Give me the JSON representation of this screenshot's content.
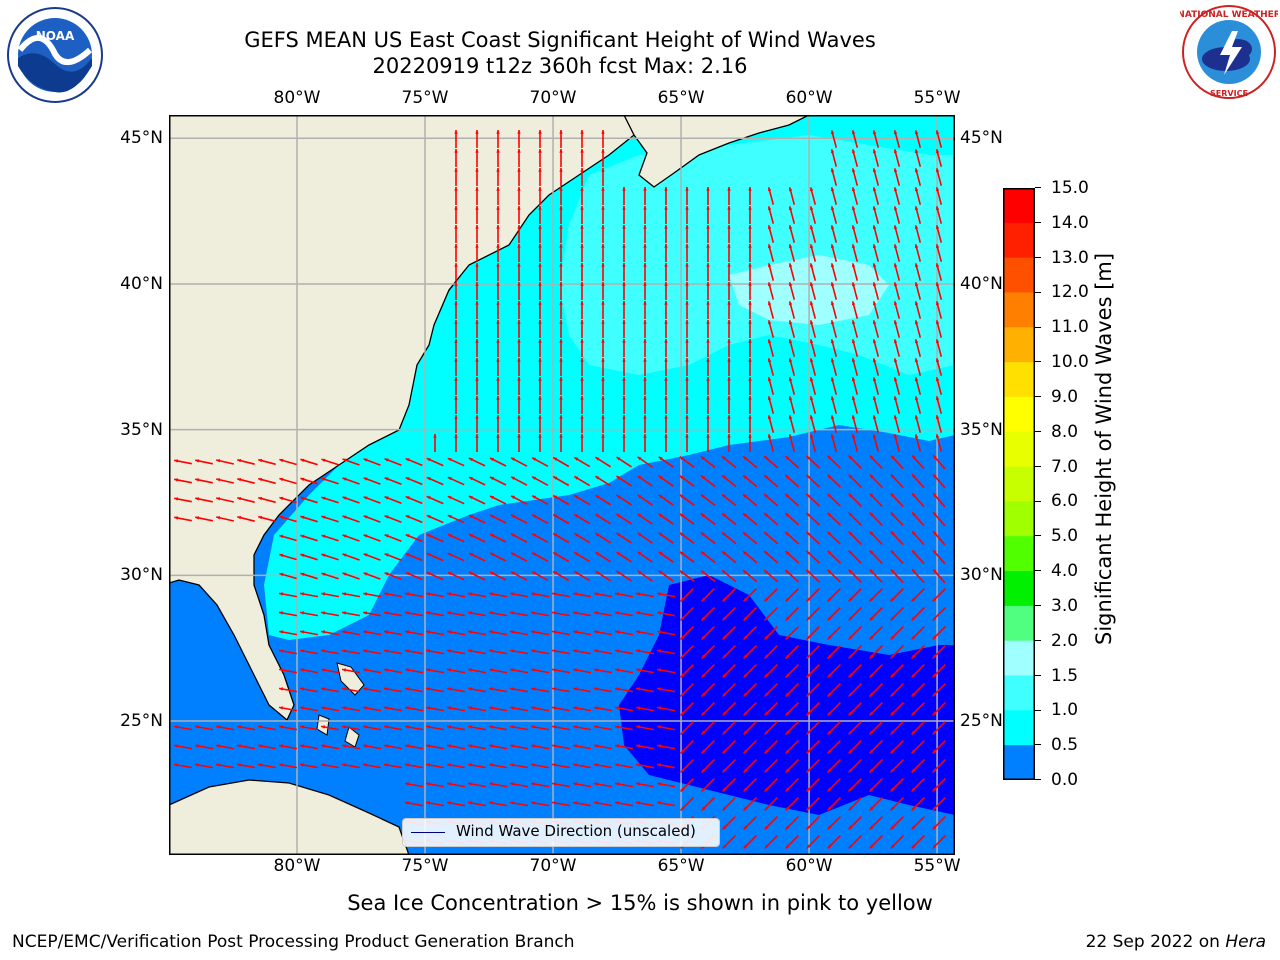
{
  "title": {
    "line1": "GEFS MEAN US East Coast Significant Height of Wind Waves",
    "line2": "20220919 t12z 360h fcst   Max: 2.16"
  },
  "map": {
    "lon_ticks_top": [
      "80°W",
      "75°W",
      "70°W",
      "65°W",
      "60°W",
      "55°W"
    ],
    "lon_ticks_bottom": [
      "80°W",
      "75°W",
      "70°W",
      "65°W",
      "60°W",
      "55°W"
    ],
    "lat_ticks_left": [
      "45°N",
      "40°N",
      "35°N",
      "30°N",
      "25°N"
    ],
    "lat_ticks_right": [
      "45°N",
      "40°N",
      "35°N",
      "30°N",
      "25°N"
    ],
    "lon_values": [
      -80,
      -75,
      -70,
      -65,
      -60,
      -55
    ],
    "lat_values": [
      45,
      40,
      35,
      30,
      25
    ],
    "lon_range": [
      -85,
      -54.3
    ],
    "lat_range": [
      20.4,
      45.8
    ],
    "colors": {
      "land": "#efeedc",
      "band_0_0_5": "#0000ff",
      "band_0_5_1_0": "#0080ff",
      "band_1_0_1_5": "#00ffff",
      "band_1_5_2_0": "#40ffff",
      "band_2_0_3_0": "#a0ffff",
      "arrow": "#ff0000",
      "grid": "#b0b0b0"
    }
  },
  "colorbar": {
    "title": "Significant Height of Wind Waves [m]",
    "labels": [
      "15.0",
      "14.0",
      "13.0",
      "12.0",
      "11.0",
      "10.0",
      "9.0",
      "8.0",
      "7.0",
      "6.0",
      "5.0",
      "4.0",
      "3.0",
      "2.0",
      "1.5",
      "1.0",
      "0.5",
      "0.0"
    ],
    "colors": [
      "#ff0000",
      "#ff2000",
      "#ff5000",
      "#ff8000",
      "#ffb000",
      "#ffe000",
      "#ffff00",
      "#e8ff00",
      "#c8ff00",
      "#a0ff00",
      "#50ff00",
      "#00f000",
      "#50ff80",
      "#a0ffff",
      "#40ffff",
      "#00ffff",
      "#0080ff",
      "#0000ff"
    ]
  },
  "legend": {
    "label": "Wind Wave Direction (unscaled)"
  },
  "note": "Sea Ice Concentration > 15% is shown in pink to yellow",
  "footer": {
    "left": "NCEP/EMC/Verification Post Processing Product Generation Branch",
    "right_prefix": "22 Sep 2022 on ",
    "right_host": "Hera"
  },
  "logos": {
    "left": "NOAA",
    "right": "NATIONAL WEATHER SERVICE"
  }
}
